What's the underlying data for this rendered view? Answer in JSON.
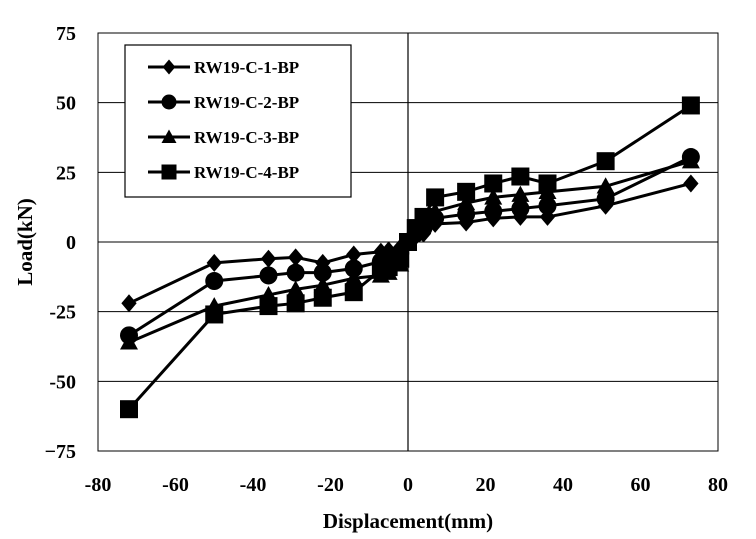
{
  "chart_data": {
    "type": "line",
    "title": "",
    "xlabel": "Displacement(mm)",
    "ylabel": "Load(kN)",
    "xlim": [
      -80,
      80
    ],
    "ylim": [
      -75,
      75
    ],
    "x_ticks": [
      -80,
      -60,
      -40,
      -20,
      0,
      20,
      40,
      60,
      80
    ],
    "y_ticks": [
      -75,
      -50,
      -25,
      0,
      25,
      50,
      75
    ],
    "x_tick_labels": [
      "-80",
      "-60",
      "-40",
      "-20",
      "0",
      "20",
      "40",
      "60",
      "80"
    ],
    "y_tick_labels": [
      "−75",
      "-50",
      "-25",
      "0",
      "25",
      "50",
      "75"
    ],
    "grid": "horizontal",
    "legend_position": "top-left",
    "series": [
      {
        "name": "RW19-C-1-BP",
        "marker": "diamond",
        "x": [
          -72,
          -50,
          -36,
          -29,
          -22,
          -14,
          -7,
          -5,
          -2,
          0,
          2,
          4,
          7,
          15,
          22,
          29,
          36,
          51,
          73
        ],
        "y": [
          -22,
          -7.5,
          -6,
          -5.5,
          -7.5,
          -4.5,
          -3.5,
          -3,
          -2,
          0,
          2,
          3,
          6.5,
          7,
          8.5,
          9,
          9,
          13,
          21
        ]
      },
      {
        "name": "RW19-C-2-BP",
        "marker": "circle",
        "x": [
          -72,
          -50,
          -36,
          -29,
          -22,
          -14,
          -7,
          -5,
          -2,
          0,
          2,
          4,
          7,
          15,
          22,
          29,
          36,
          51,
          73
        ],
        "y": [
          -33.5,
          -14,
          -12,
          -11,
          -11,
          -9.5,
          -7,
          -6,
          -4,
          0,
          3,
          5,
          8.5,
          10,
          11,
          12,
          13,
          15.5,
          30.5
        ]
      },
      {
        "name": "RW19-C-3-BP",
        "marker": "triangle",
        "x": [
          -72,
          -50,
          -36,
          -29,
          -22,
          -14,
          -7,
          -5,
          -2,
          0,
          2,
          4,
          7,
          15,
          22,
          29,
          36,
          51,
          73
        ],
        "y": [
          -36,
          -23,
          -19,
          -17,
          -15.5,
          -13,
          -12,
          -11,
          -8,
          0,
          4,
          8,
          11,
          14,
          16,
          17,
          18,
          20,
          29
        ]
      },
      {
        "name": "RW19-C-4-BP",
        "marker": "square",
        "x": [
          -72,
          -50,
          -36,
          -29,
          -22,
          -14,
          -7,
          -5,
          -2,
          0,
          2,
          4,
          7,
          15,
          22,
          29,
          36,
          51,
          73
        ],
        "y": [
          -60,
          -26,
          -23,
          -22,
          -20,
          -18,
          -10,
          -9,
          -6,
          0,
          5,
          9,
          16,
          18,
          21,
          23.5,
          21,
          29,
          49
        ]
      }
    ]
  }
}
